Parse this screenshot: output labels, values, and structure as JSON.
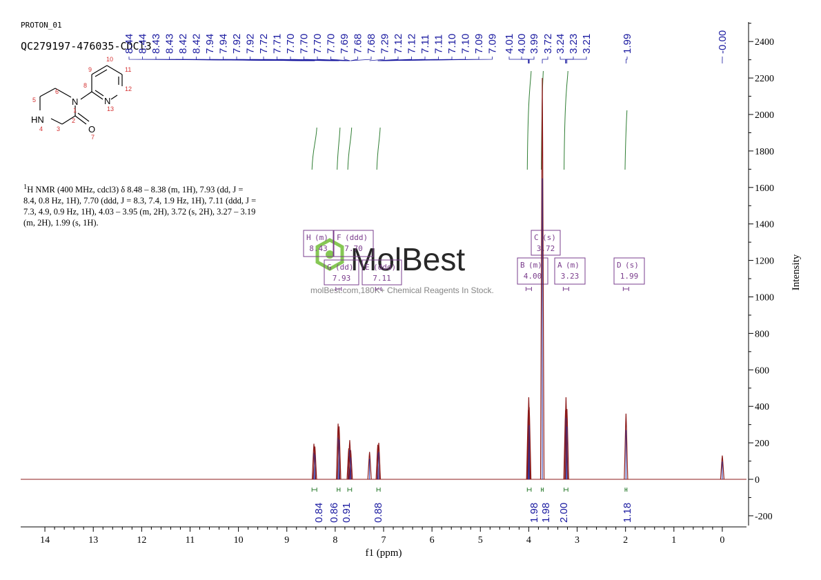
{
  "header": {
    "experiment": "PROTON_01",
    "sample_id": "QC279197-476035-CDCl3"
  },
  "molecule": {
    "atom_labels": [
      "1",
      "2",
      "3",
      "4",
      "5",
      "6",
      "7",
      "8",
      "9",
      "10",
      "11",
      "12",
      "13"
    ],
    "hetero_labels": {
      "n1": "N",
      "nh": "HN",
      "n13": "N",
      "o": "O"
    }
  },
  "nmr_summary": {
    "sup": "1",
    "text": "H NMR (400 MHz, cdcl3) δ 8.48 – 8.38 (m, 1H), 7.93 (dd, J = 8.4, 0.8 Hz, 1H), 7.70 (ddd, J = 8.3, 7.4, 1.9 Hz, 1H), 7.11 (ddd, J = 7.3, 4.9, 0.9 Hz, 1H), 4.03 – 3.95 (m, 2H), 3.72 (s, 2H), 3.27 – 3.19 (m, 2H), 1.99 (s, 1H)."
  },
  "watermark": {
    "brand": "MolBest",
    "tagline": "molBest.com,180K+ Chemical Reagents In Stock."
  },
  "colors": {
    "spectrum": "#8b1a1a",
    "peak_labels": "#1a1aa0",
    "integral_curves": "#2e7d32",
    "integral_text": "#1a1aa0",
    "multiplet_box": "#7a3c8c",
    "watermark_logo": "#7ac143"
  },
  "chart_data": {
    "type": "line",
    "xlabel": "f1 (ppm)",
    "ylabel": "Intensity",
    "xlim": [
      14.5,
      -0.5
    ],
    "ylim": [
      -250,
      2500
    ],
    "x_ticks": [
      14,
      13,
      12,
      11,
      10,
      9,
      8,
      7,
      6,
      5,
      4,
      3,
      2,
      1,
      0
    ],
    "y_ticks": [
      -200,
      0,
      200,
      400,
      600,
      800,
      1000,
      1200,
      1400,
      1600,
      1800,
      2000,
      2200,
      2400
    ],
    "peak_labels": [
      "8.44",
      "8.44",
      "8.43",
      "8.43",
      "8.42",
      "8.42",
      "7.94",
      "7.94",
      "7.92",
      "7.92",
      "7.72",
      "7.71",
      "7.70",
      "7.70",
      "7.70",
      "7.70",
      "7.69",
      "7.68",
      "7.68",
      "7.29",
      "7.12",
      "7.12",
      "7.11",
      "7.11",
      "7.10",
      "7.10",
      "7.09",
      "7.09",
      "4.01",
      "4.00",
      "3.99",
      "3.72",
      "3.24",
      "3.23",
      "3.21",
      "1.99",
      "-0.00"
    ],
    "peaks": [
      {
        "ppm": 8.44,
        "height": 195
      },
      {
        "ppm": 8.42,
        "height": 180
      },
      {
        "ppm": 7.94,
        "height": 305
      },
      {
        "ppm": 7.92,
        "height": 290
      },
      {
        "ppm": 7.72,
        "height": 170
      },
      {
        "ppm": 7.7,
        "height": 215
      },
      {
        "ppm": 7.68,
        "height": 160
      },
      {
        "ppm": 7.29,
        "height": 150
      },
      {
        "ppm": 7.12,
        "height": 190
      },
      {
        "ppm": 7.1,
        "height": 200
      },
      {
        "ppm": 4.01,
        "height": 380
      },
      {
        "ppm": 4.0,
        "height": 450
      },
      {
        "ppm": 3.99,
        "height": 395
      },
      {
        "ppm": 3.72,
        "height": 2200
      },
      {
        "ppm": 3.24,
        "height": 380
      },
      {
        "ppm": 3.23,
        "height": 450
      },
      {
        "ppm": 3.21,
        "height": 385
      },
      {
        "ppm": 1.99,
        "height": 360
      },
      {
        "ppm": 0.0,
        "height": 130
      }
    ],
    "integrals": [
      {
        "center": 8.43,
        "from": 8.48,
        "to": 8.38,
        "value": "0.84"
      },
      {
        "center": 7.93,
        "from": 7.96,
        "to": 7.9,
        "value": "0.86"
      },
      {
        "center": 7.7,
        "from": 7.74,
        "to": 7.66,
        "value": "0.91"
      },
      {
        "center": 7.11,
        "from": 7.14,
        "to": 7.07,
        "value": "0.88"
      },
      {
        "center": 4.0,
        "from": 4.03,
        "to": 3.95,
        "value": "1.98"
      },
      {
        "center": 3.72,
        "from": 3.74,
        "to": 3.7,
        "value": "1.98"
      },
      {
        "center": 3.23,
        "from": 3.27,
        "to": 3.19,
        "value": "2.00"
      },
      {
        "center": 1.99,
        "from": 2.01,
        "to": 1.97,
        "value": "1.18"
      }
    ],
    "multiplets": [
      {
        "id": "H",
        "mult": "(m)",
        "shift": "8.43"
      },
      {
        "id": "F",
        "mult": "(ddd)",
        "shift": "7.70"
      },
      {
        "id": "G",
        "mult": "(dd)",
        "shift": "7.93"
      },
      {
        "id": "E",
        "mult": "(ddd)",
        "shift": "7.11"
      },
      {
        "id": "C",
        "mult": "(s)",
        "shift": "3.72"
      },
      {
        "id": "B",
        "mult": "(m)",
        "shift": "4.00"
      },
      {
        "id": "A",
        "mult": "(m)",
        "shift": "3.23"
      },
      {
        "id": "D",
        "mult": "(s)",
        "shift": "1.99"
      }
    ],
    "grid": false
  }
}
